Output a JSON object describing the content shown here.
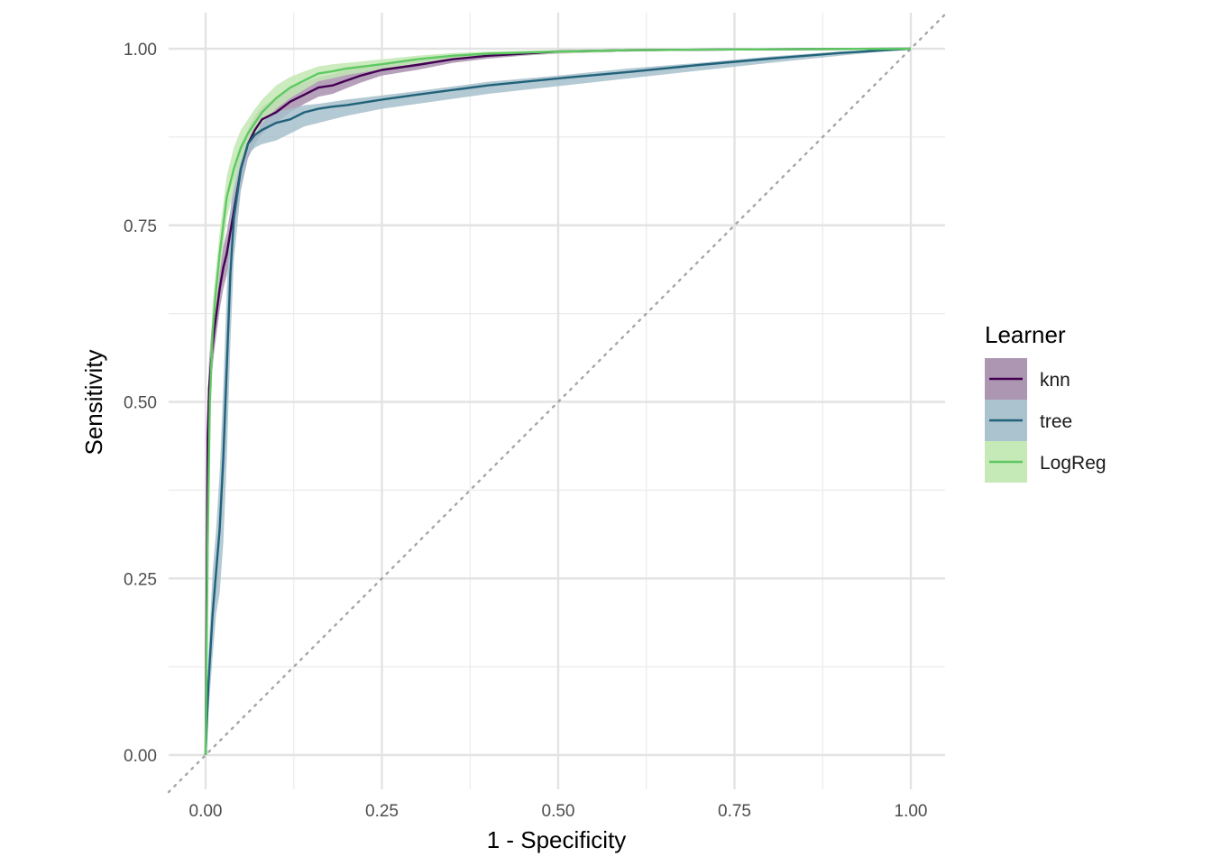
{
  "chart_data": {
    "type": "line",
    "title": "",
    "xlabel": "1 - Specificity",
    "ylabel": "Sensitivity",
    "xlim": [
      0,
      1
    ],
    "ylim": [
      0,
      1
    ],
    "x_ticks": [
      "0.00",
      "0.25",
      "0.50",
      "0.75",
      "1.00"
    ],
    "y_ticks": [
      "0.00",
      "0.25",
      "0.50",
      "0.75",
      "1.00"
    ],
    "grid": true,
    "reference_line": {
      "style": "dotted",
      "slope": 1,
      "intercept": 0,
      "color": "#a6a6a6"
    },
    "legend": {
      "title": "Learner",
      "position": "right"
    },
    "series": [
      {
        "name": "knn",
        "color": "#440154",
        "fill": "#a990ae",
        "x": [
          0,
          0.003,
          0.005,
          0.008,
          0.012,
          0.016,
          0.02,
          0.025,
          0.03,
          0.035,
          0.04,
          0.045,
          0.05,
          0.06,
          0.07,
          0.08,
          0.09,
          0.1,
          0.12,
          0.14,
          0.16,
          0.18,
          0.2,
          0.22,
          0.25,
          0.3,
          0.35,
          0.4,
          0.45,
          0.5,
          0.6,
          0.75,
          1.0
        ],
        "y": [
          0,
          0.45,
          0.52,
          0.56,
          0.6,
          0.63,
          0.66,
          0.69,
          0.71,
          0.74,
          0.77,
          0.8,
          0.83,
          0.865,
          0.885,
          0.9,
          0.905,
          0.91,
          0.925,
          0.935,
          0.945,
          0.948,
          0.955,
          0.962,
          0.97,
          0.977,
          0.985,
          0.99,
          0.993,
          0.996,
          0.998,
          0.999,
          1.0
        ],
        "band_low": [
          0,
          0.4,
          0.48,
          0.53,
          0.57,
          0.6,
          0.63,
          0.66,
          0.68,
          0.71,
          0.74,
          0.77,
          0.8,
          0.845,
          0.865,
          0.88,
          0.888,
          0.895,
          0.91,
          0.922,
          0.932,
          0.936,
          0.944,
          0.952,
          0.962,
          0.97,
          0.98,
          0.986,
          0.99,
          0.993,
          0.996,
          0.998,
          1.0
        ],
        "band_high": [
          0,
          0.5,
          0.56,
          0.6,
          0.63,
          0.66,
          0.69,
          0.72,
          0.74,
          0.77,
          0.8,
          0.83,
          0.86,
          0.885,
          0.905,
          0.918,
          0.924,
          0.93,
          0.944,
          0.952,
          0.96,
          0.964,
          0.97,
          0.974,
          0.979,
          0.985,
          0.99,
          0.994,
          0.996,
          0.998,
          0.999,
          1.0,
          1.0
        ]
      },
      {
        "name": "tree",
        "color": "#21627a",
        "fill": "#a6c0cb",
        "x": [
          0,
          0.004,
          0.01,
          0.015,
          0.02,
          0.025,
          0.03,
          0.035,
          0.04,
          0.05,
          0.06,
          0.07,
          0.08,
          0.1,
          0.12,
          0.14,
          0.16,
          0.18,
          0.2,
          0.25,
          0.3,
          0.4,
          0.5,
          0.6,
          0.7,
          0.8,
          0.9,
          1.0
        ],
        "y": [
          0,
          0.1,
          0.2,
          0.26,
          0.32,
          0.42,
          0.55,
          0.68,
          0.76,
          0.83,
          0.865,
          0.878,
          0.885,
          0.895,
          0.9,
          0.91,
          0.915,
          0.918,
          0.92,
          0.928,
          0.935,
          0.948,
          0.958,
          0.967,
          0.977,
          0.986,
          0.994,
          1.0
        ],
        "band_low": [
          0,
          0.06,
          0.14,
          0.2,
          0.23,
          0.3,
          0.42,
          0.58,
          0.7,
          0.8,
          0.85,
          0.86,
          0.865,
          0.87,
          0.88,
          0.89,
          0.895,
          0.9,
          0.905,
          0.915,
          0.922,
          0.936,
          0.947,
          0.958,
          0.969,
          0.98,
          0.99,
          1.0
        ],
        "band_high": [
          0,
          0.14,
          0.26,
          0.32,
          0.4,
          0.52,
          0.66,
          0.77,
          0.82,
          0.86,
          0.88,
          0.893,
          0.9,
          0.91,
          0.915,
          0.92,
          0.922,
          0.925,
          0.928,
          0.934,
          0.94,
          0.953,
          0.962,
          0.972,
          0.98,
          0.989,
          0.996,
          1.0
        ]
      },
      {
        "name": "LogReg",
        "color": "#5ec962",
        "fill": "#c3e8b4",
        "x": [
          0,
          0.003,
          0.006,
          0.01,
          0.015,
          0.02,
          0.025,
          0.03,
          0.035,
          0.04,
          0.05,
          0.06,
          0.07,
          0.08,
          0.1,
          0.12,
          0.14,
          0.16,
          0.18,
          0.2,
          0.25,
          0.3,
          0.35,
          0.4,
          0.5,
          0.6,
          0.75,
          1.0
        ],
        "y": [
          0,
          0.3,
          0.5,
          0.6,
          0.66,
          0.71,
          0.75,
          0.79,
          0.81,
          0.83,
          0.86,
          0.88,
          0.895,
          0.91,
          0.93,
          0.945,
          0.955,
          0.965,
          0.968,
          0.972,
          0.978,
          0.985,
          0.99,
          0.993,
          0.996,
          0.998,
          0.999,
          1.0
        ],
        "band_low": [
          0,
          0.25,
          0.45,
          0.56,
          0.63,
          0.68,
          0.72,
          0.76,
          0.78,
          0.8,
          0.84,
          0.86,
          0.878,
          0.895,
          0.915,
          0.93,
          0.942,
          0.954,
          0.958,
          0.963,
          0.971,
          0.979,
          0.985,
          0.989,
          0.993,
          0.996,
          0.998,
          1.0
        ],
        "band_high": [
          0,
          0.35,
          0.55,
          0.64,
          0.69,
          0.74,
          0.78,
          0.82,
          0.84,
          0.86,
          0.885,
          0.9,
          0.915,
          0.928,
          0.948,
          0.96,
          0.968,
          0.975,
          0.978,
          0.98,
          0.985,
          0.99,
          0.994,
          0.996,
          0.998,
          0.999,
          1.0,
          1.0
        ]
      }
    ]
  }
}
